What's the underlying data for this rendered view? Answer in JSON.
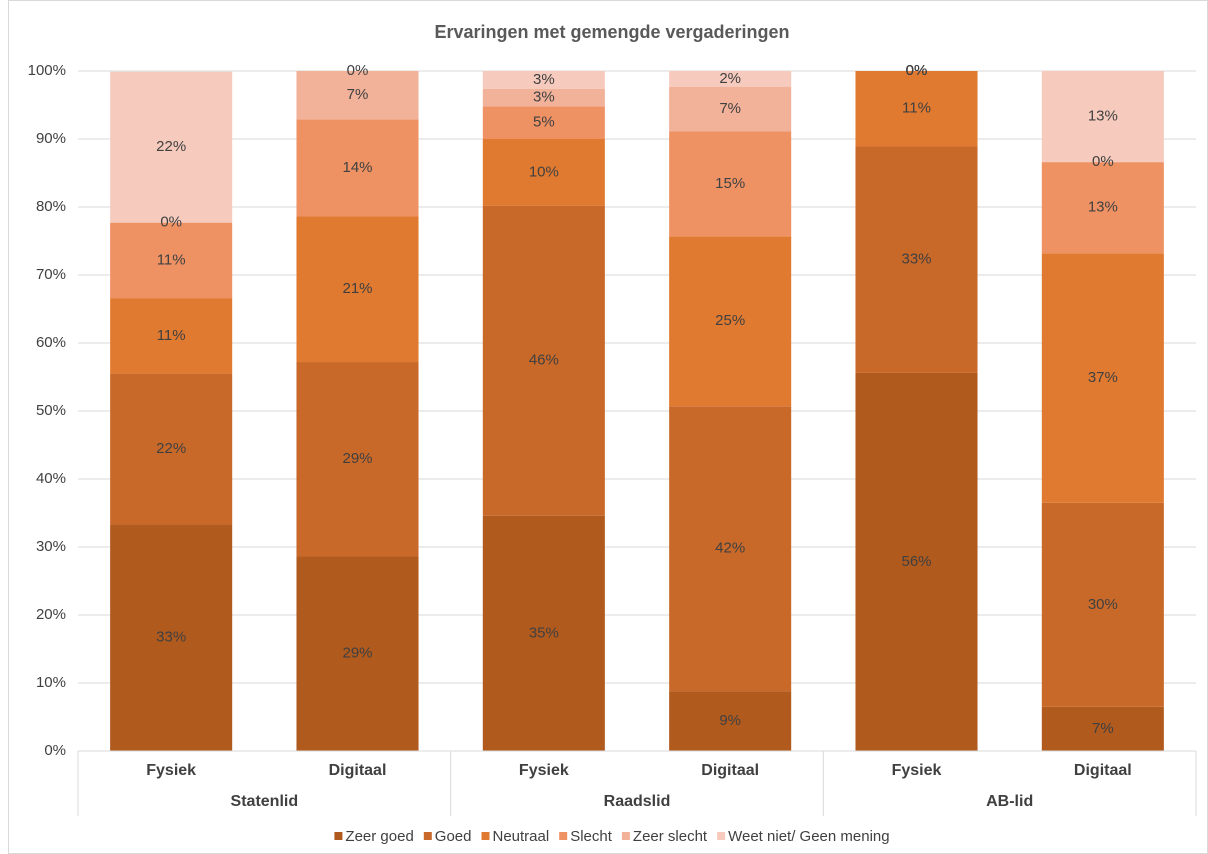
{
  "chart_data": {
    "type": "stacked_bar",
    "title": "Ervaringen met gemengde vergaderingen",
    "categories": [
      "Fysiek",
      "Digitaal",
      "Fysiek",
      "Digitaal",
      "Fysiek",
      "Digitaal"
    ],
    "groups": [
      "Statenlid",
      "Raadslid",
      "AB-lid"
    ],
    "series": [
      {
        "name": "Zeer goed",
        "color": "#b05a1e",
        "values": [
          33.3,
          28.6,
          34.6,
          8.8,
          55.6,
          6.5
        ],
        "value_labels": [
          "33%",
          "29%",
          "35%",
          "9%",
          "56%",
          "7%"
        ]
      },
      {
        "name": "Goed",
        "color": "#c8692a",
        "values": [
          22.2,
          28.6,
          45.6,
          41.9,
          33.3,
          30.0
        ],
        "value_labels": [
          "22%",
          "29%",
          "46%",
          "42%",
          "33%",
          "30%"
        ]
      },
      {
        "name": "Neutraal",
        "color": "#e07a30",
        "values": [
          11.1,
          21.4,
          9.8,
          25.0,
          11.1,
          36.7
        ],
        "value_labels": [
          "11%",
          "21%",
          "10%",
          "25%",
          "11%",
          "37%"
        ]
      },
      {
        "name": "Slecht",
        "color": "#ee9264",
        "values": [
          11.1,
          14.3,
          4.8,
          15.4,
          0,
          13.4
        ],
        "value_labels": [
          "11%",
          "14%",
          "5%",
          "15%",
          "0%",
          "13%"
        ]
      },
      {
        "name": "Zeer slecht",
        "color": "#f2b29a",
        "values": [
          0,
          7.1,
          2.6,
          6.6,
          0,
          0
        ],
        "value_labels": [
          "0%",
          "7%",
          "3%",
          "7%",
          "0%",
          "0%"
        ]
      },
      {
        "name": "Weet niet/ Geen mening",
        "color": "#f6cbbd",
        "values": [
          22.2,
          0,
          2.6,
          2.3,
          0,
          13.4
        ],
        "value_labels": [
          "22%",
          "0%",
          "3%",
          "2%",
          "0%",
          "13%"
        ]
      }
    ],
    "ylim": [
      0,
      100
    ],
    "yticks": [
      {
        "value": 0,
        "label": "0%"
      },
      {
        "value": 10,
        "label": "10%"
      },
      {
        "value": 20,
        "label": "20%"
      },
      {
        "value": 30,
        "label": "30%"
      },
      {
        "value": 40,
        "label": "40%"
      },
      {
        "value": 50,
        "label": "50%"
      },
      {
        "value": 60,
        "label": "60%"
      },
      {
        "value": 70,
        "label": "70%"
      },
      {
        "value": 80,
        "label": "80%"
      },
      {
        "value": 90,
        "label": "90%"
      },
      {
        "value": 100,
        "label": "100%"
      }
    ],
    "grid": true,
    "legend": "bottom"
  }
}
